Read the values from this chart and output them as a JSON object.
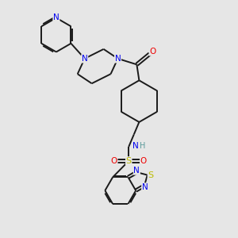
{
  "background_color": "#e6e6e6",
  "bond_color": "#1a1a1a",
  "atom_colors": {
    "N": "#0000ee",
    "O": "#ee0000",
    "S": "#bbbb00",
    "C": "#1a1a1a",
    "H": "#5a9a9a"
  },
  "figsize": [
    3.0,
    3.0
  ],
  "dpi": 100,
  "lw": 1.4
}
